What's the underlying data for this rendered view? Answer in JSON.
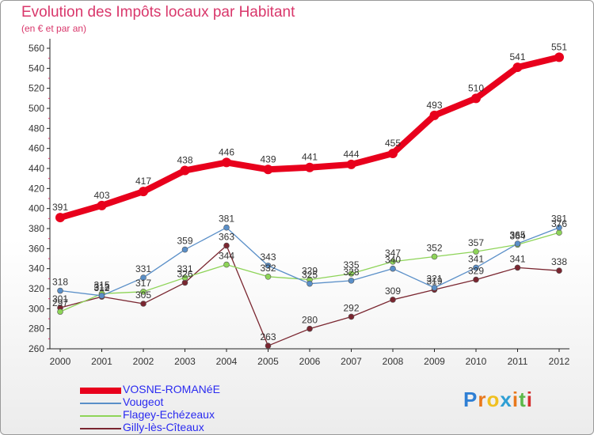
{
  "chart_data": {
    "type": "line",
    "title": "Evolution des Impôts locaux par Habitant",
    "subtitle": "(en € et par an)",
    "xlabel": "",
    "ylabel": "",
    "ylim": [
      260,
      560
    ],
    "yticks": [
      260,
      280,
      300,
      320,
      340,
      360,
      380,
      400,
      420,
      440,
      460,
      480,
      500,
      520,
      540,
      560
    ],
    "grid": false,
    "x": [
      "2000",
      "2001",
      "2002",
      "2003",
      "2004",
      "2005",
      "2006",
      "2007",
      "2008",
      "2009",
      "2010",
      "2011",
      "2012"
    ],
    "series": [
      {
        "name": "VOSNE-ROMANéE",
        "color": "#e8001c",
        "values": [
          391,
          403,
          417,
          438,
          446,
          439,
          441,
          444,
          455,
          493,
          510,
          541,
          551
        ]
      },
      {
        "name": "Vougeot",
        "color": "#5a8fc8",
        "values": [
          318,
          313,
          331,
          359,
          381,
          343,
          325,
          328,
          340,
          321,
          341,
          365,
          381
        ]
      },
      {
        "name": "Flagey-Echézeaux",
        "color": "#8ed458",
        "values": [
          297,
          315,
          317,
          331,
          344,
          332,
          329,
          335,
          347,
          352,
          357,
          364,
          376
        ]
      },
      {
        "name": "Gilly-lès-Cîteaux",
        "color": "#7a2630",
        "values": [
          301,
          312,
          305,
          326,
          363,
          263,
          280,
          292,
          309,
          319,
          329,
          341,
          338
        ]
      }
    ]
  },
  "brand": {
    "name": "Proxiti",
    "letter_colors": [
      "#2f7fd4",
      "#e8781c",
      "#f0c020",
      "#2f9fd4",
      "#e8781c",
      "#5cb84a",
      "#d43030"
    ]
  }
}
